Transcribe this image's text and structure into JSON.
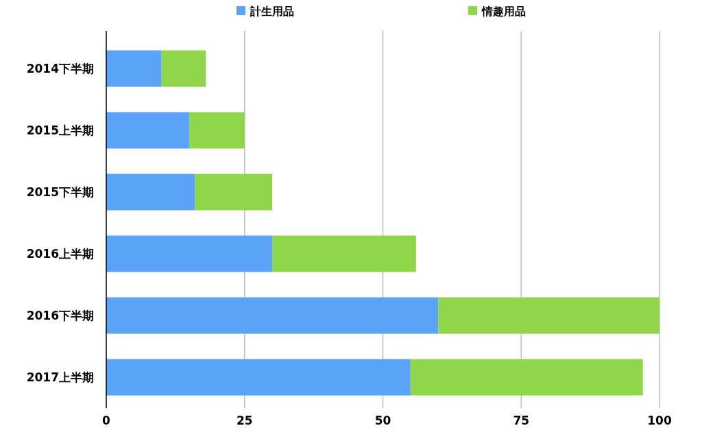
{
  "chart_data": {
    "type": "bar",
    "orientation": "horizontal",
    "stacked": true,
    "categories": [
      "2014下半期",
      "2015上半期",
      "2015下半期",
      "2016上半期",
      "2016下半期",
      "2017上半期"
    ],
    "series": [
      {
        "name": "計生用品",
        "color": "#5ba3f8",
        "values": [
          10,
          15,
          16,
          30,
          60,
          55
        ]
      },
      {
        "name": "情趣用品",
        "color": "#8fd64a",
        "values": [
          8,
          10,
          14,
          26,
          40,
          42
        ]
      }
    ],
    "xlim": [
      0,
      100
    ],
    "xticks": [
      0,
      25,
      50,
      75,
      100
    ],
    "grid": "x",
    "legend": "top"
  }
}
